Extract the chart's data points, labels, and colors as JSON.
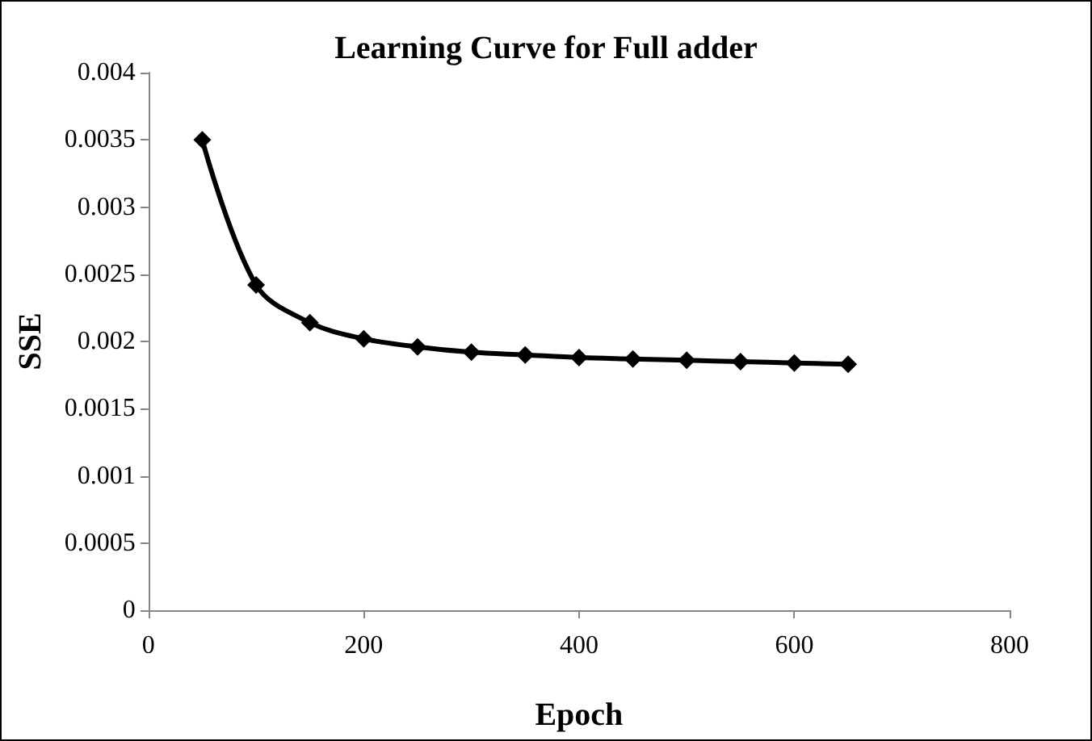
{
  "chart_data": {
    "type": "line",
    "title": "Learning Curve for Full adder",
    "xlabel": "Epoch",
    "ylabel": "SSE",
    "x": [
      50,
      100,
      150,
      200,
      250,
      300,
      350,
      400,
      450,
      500,
      550,
      600,
      650
    ],
    "series": [
      {
        "color": "#000000",
        "values": [
          0.0035,
          0.00242,
          0.00214,
          0.00202,
          0.00196,
          0.00192,
          0.0019,
          0.00188,
          0.00187,
          0.00186,
          0.00185,
          0.00184,
          0.00183
        ]
      }
    ],
    "xlim": [
      0,
      800
    ],
    "xticks": [
      0,
      200,
      400,
      600,
      800
    ],
    "ylim": [
      0,
      0.004
    ],
    "yticks": [
      0,
      0.0005,
      0.001,
      0.0015,
      0.002,
      0.0025,
      0.003,
      0.0035,
      0.004
    ],
    "grid": false,
    "marker": "diamond",
    "line_style": "solid"
  }
}
